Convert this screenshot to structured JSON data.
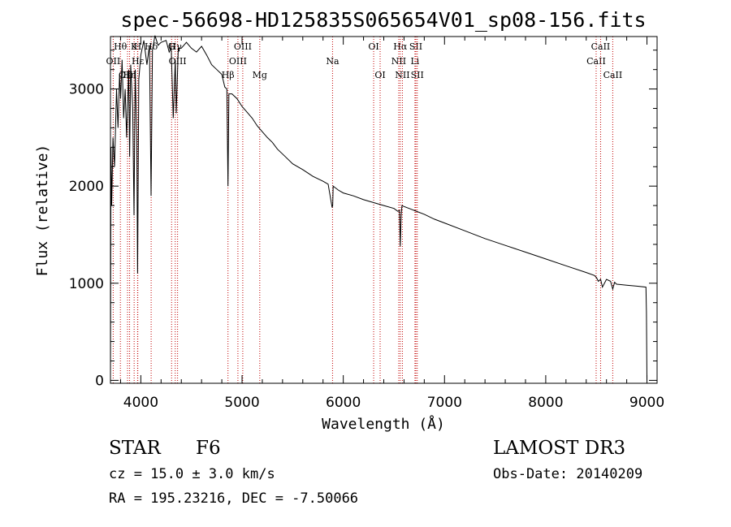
{
  "chart_data": {
    "type": "line",
    "title": "spec-56698-HD125835S065654V01_sp08-156.fits",
    "xlabel": "Wavelength (Å)",
    "ylabel": "Flux (relative)",
    "xlim": [
      3700,
      9100
    ],
    "ylim": [
      -30,
      3540
    ],
    "xticks": [
      4000,
      5000,
      6000,
      7000,
      8000,
      9000
    ],
    "yticks": [
      0,
      1000,
      2000,
      3000
    ],
    "grid": false,
    "series": [
      {
        "name": "flux",
        "x": [
          3700,
          3705,
          3712,
          3725,
          3740,
          3760,
          3775,
          3790,
          3800,
          3815,
          3830,
          3845,
          3860,
          3880,
          3889,
          3900,
          3920,
          3933,
          3945,
          3960,
          3968,
          3980,
          4000,
          4030,
          4060,
          4085,
          4101,
          4115,
          4140,
          4170,
          4200,
          4250,
          4280,
          4300,
          4320,
          4340,
          4350,
          4370,
          4400,
          4450,
          4500,
          4550,
          4600,
          4650,
          4700,
          4750,
          4800,
          4830,
          4850,
          4861,
          4870,
          4900,
          4950,
          5000,
          5050,
          5100,
          5150,
          5200,
          5250,
          5300,
          5350,
          5400,
          5450,
          5500,
          5600,
          5700,
          5800,
          5850,
          5890,
          5895,
          5900,
          5950,
          6000,
          6100,
          6200,
          6300,
          6400,
          6500,
          6540,
          6555,
          6563,
          6572,
          6580,
          6600,
          6650,
          6700,
          6800,
          6900,
          7000,
          7200,
          7400,
          7600,
          7800,
          8000,
          8200,
          8400,
          8480,
          8500,
          8520,
          8542,
          8560,
          8600,
          8640,
          8662,
          8680,
          8700,
          8800,
          8900,
          8990,
          8995,
          9000
        ],
        "values": [
          0,
          2400,
          1800,
          2500,
          2200,
          3000,
          2600,
          3150,
          2900,
          3300,
          2700,
          3000,
          2500,
          3200,
          2300,
          3250,
          2800,
          1700,
          3200,
          2500,
          1100,
          3100,
          3350,
          3500,
          3250,
          3450,
          1900,
          3400,
          3550,
          3450,
          3480,
          3500,
          3380,
          3420,
          2700,
          3300,
          2750,
          3420,
          3420,
          3480,
          3420,
          3380,
          3440,
          3350,
          3250,
          3200,
          3150,
          3020,
          3000,
          2000,
          2950,
          2950,
          2900,
          2820,
          2760,
          2700,
          2620,
          2560,
          2500,
          2450,
          2380,
          2330,
          2280,
          2230,
          2170,
          2100,
          2050,
          2020,
          1780,
          1800,
          2000,
          1960,
          1930,
          1900,
          1860,
          1830,
          1800,
          1770,
          1740,
          1750,
          1380,
          1700,
          1800,
          1790,
          1770,
          1750,
          1710,
          1660,
          1620,
          1540,
          1460,
          1390,
          1320,
          1250,
          1180,
          1110,
          1080,
          1060,
          1020,
          1040,
          960,
          1040,
          1020,
          940,
          1010,
          990,
          980,
          970,
          960,
          700,
          0
        ]
      }
    ],
    "line_markers": [
      {
        "label": "Hθ",
        "wavelength": 3798,
        "row": 1
      },
      {
        "label": "OII",
        "wavelength": 3727,
        "row": 2
      },
      {
        "label": "OIII",
        "wavelength": 3869,
        "row": 3
      },
      {
        "label": "K",
        "wavelength": 3934,
        "row": 1
      },
      {
        "label": "H",
        "wavelength": 3968,
        "row": 1
      },
      {
        "label": "Hε",
        "wavelength": 3970,
        "row": 2
      },
      {
        "label": "Hη",
        "wavelength": 3889,
        "row": 3
      },
      {
        "label": "Hδ",
        "wavelength": 4102,
        "row": 1
      },
      {
        "label": "G",
        "wavelength": 4304,
        "row": 1
      },
      {
        "label": "Hγ",
        "wavelength": 4340,
        "row": 1
      },
      {
        "label": "OIII",
        "wavelength": 4363,
        "row": 2
      },
      {
        "label": "Hβ",
        "wavelength": 4861,
        "row": 3
      },
      {
        "label": "OIII",
        "wavelength": 4959,
        "row": 2
      },
      {
        "label": "OIII",
        "wavelength": 5007,
        "row": 1
      },
      {
        "label": "Mg",
        "wavelength": 5175,
        "row": 3
      },
      {
        "label": "Na",
        "wavelength": 5894,
        "row": 2
      },
      {
        "label": "OI",
        "wavelength": 6300,
        "row": 1
      },
      {
        "label": "OI",
        "wavelength": 6364,
        "row": 3
      },
      {
        "label": "Hα",
        "wavelength": 6563,
        "row": 1
      },
      {
        "label": "NII",
        "wavelength": 6548,
        "row": 2
      },
      {
        "label": "NII",
        "wavelength": 6584,
        "row": 3
      },
      {
        "label": "SII",
        "wavelength": 6717,
        "row": 1
      },
      {
        "label": "Li",
        "wavelength": 6708,
        "row": 2
      },
      {
        "label": "SII",
        "wavelength": 6731,
        "row": 3
      },
      {
        "label": "CaII",
        "wavelength": 8498,
        "row": 2
      },
      {
        "label": "CaII",
        "wavelength": 8542,
        "row": 1
      },
      {
        "label": "CaII",
        "wavelength": 8662,
        "row": 3
      }
    ],
    "marker_color": "#c00000"
  },
  "info": {
    "object_type": "STAR",
    "spectral_class": "F6",
    "survey": "LAMOST DR3",
    "redshift": "cz = 15.0 ± 3.0 km/s",
    "obs_date": "Obs-Date: 20140209",
    "coordinates": "RA = 195.23216, DEC =  -7.50066"
  }
}
